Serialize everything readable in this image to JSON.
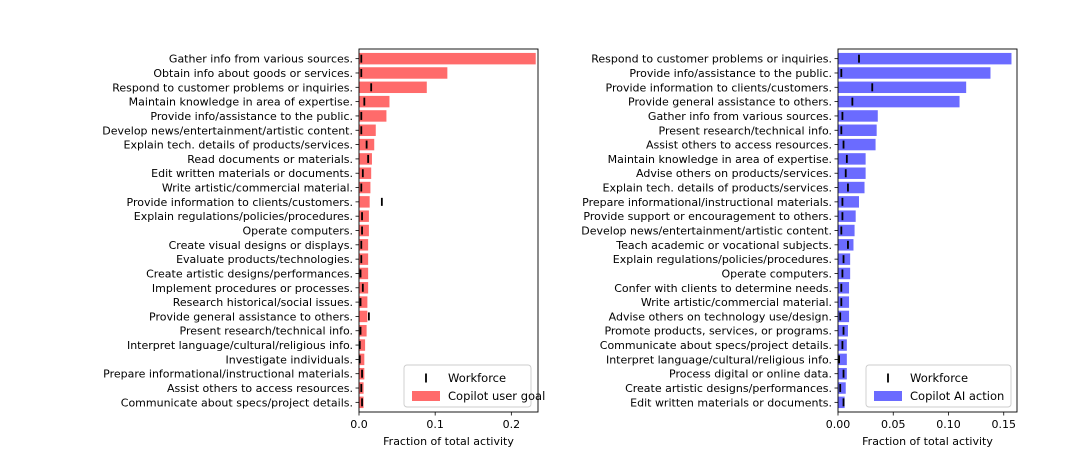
{
  "chart_data": [
    {
      "type": "bar",
      "orientation": "horizontal",
      "xlabel": "Fraction of total activity",
      "xlim": [
        0,
        0.235
      ],
      "xticks": [
        0.0,
        0.1,
        0.2
      ],
      "xtick_labels": [
        "0.0",
        "0.1",
        "0.2"
      ],
      "categories": [
        "Gather info from various sources.",
        "Obtain info about goods or services.",
        "Respond to customer problems or inquiries.",
        "Maintain knowledge in area of expertise.",
        "Provide info/assistance to the public.",
        "Develop news/entertainment/artistic content.",
        "Explain tech. details of products/services.",
        "Read documents or materials.",
        "Edit written materials or documents.",
        "Write artistic/commercial material.",
        "Provide information to clients/customers.",
        "Explain regulations/policies/procedures.",
        "Operate computers.",
        "Create visual designs or displays.",
        "Evaluate products/technologies.",
        "Create artistic designs/performances.",
        "Implement procedures or processes.",
        "Research historical/social issues.",
        "Provide general assistance to others.",
        "Present research/technical info.",
        "Interpret language/cultural/religious info.",
        "Investigate individuals.",
        "Prepare informational/instructional materials.",
        "Assist others to access resources.",
        "Communicate about specs/project details."
      ],
      "series": [
        {
          "name": "Copilot user goal",
          "color": "#ff6b6b",
          "values": [
            0.232,
            0.116,
            0.089,
            0.04,
            0.036,
            0.022,
            0.02,
            0.017,
            0.016,
            0.015,
            0.014,
            0.013,
            0.013,
            0.012,
            0.012,
            0.012,
            0.012,
            0.011,
            0.011,
            0.01,
            0.008,
            0.007,
            0.007,
            0.006,
            0.006
          ]
        },
        {
          "name": "Workforce",
          "marker": "|",
          "color": "#000000",
          "values": [
            0.003,
            0.003,
            0.016,
            0.007,
            0.003,
            0.003,
            0.01,
            0.012,
            0.005,
            0.003,
            0.03,
            0.004,
            0.004,
            0.003,
            0.003,
            0.002,
            0.005,
            0.002,
            0.013,
            0.002,
            0.001,
            0.001,
            0.004,
            0.003,
            0.004
          ]
        }
      ],
      "legend": {
        "position": "bottom-right",
        "entries": [
          "Workforce",
          "Copilot user goal"
        ]
      }
    },
    {
      "type": "bar",
      "orientation": "horizontal",
      "xlabel": "Fraction of total activity",
      "xlim": [
        0,
        0.162
      ],
      "xticks": [
        0.0,
        0.05,
        0.1,
        0.15
      ],
      "xtick_labels": [
        "0.00",
        "0.05",
        "0.10",
        "0.15"
      ],
      "categories": [
        "Respond to customer problems or inquiries.",
        "Provide info/assistance to the public.",
        "Provide information to clients/customers.",
        "Provide general assistance to others.",
        "Gather info from various sources.",
        "Present research/technical info.",
        "Assist others to access resources.",
        "Maintain knowledge in area of expertise.",
        "Advise others on products/services.",
        "Explain tech. details of products/services.",
        "Prepare informational/instructional materials.",
        "Provide support or encouragement to others.",
        "Develop news/entertainment/artistic content.",
        "Teach academic or vocational subjects.",
        "Explain regulations/policies/procedures.",
        "Operate computers.",
        "Confer with clients to determine needs.",
        "Write artistic/commercial material.",
        "Advise others on technology use/design.",
        "Promote products, services, or programs.",
        "Communicate about specs/project details.",
        "Interpret language/cultural/religious info.",
        "Process digital or online data.",
        "Create artistic designs/performances.",
        "Edit written materials or documents."
      ],
      "series": [
        {
          "name": "Copilot AI action",
          "color": "#6b6bff",
          "values": [
            0.157,
            0.138,
            0.116,
            0.11,
            0.036,
            0.035,
            0.034,
            0.025,
            0.025,
            0.024,
            0.019,
            0.016,
            0.015,
            0.014,
            0.011,
            0.011,
            0.01,
            0.01,
            0.01,
            0.009,
            0.008,
            0.008,
            0.008,
            0.007,
            0.006
          ]
        },
        {
          "name": "Workforce",
          "marker": "|",
          "color": "#000000",
          "values": [
            0.019,
            0.003,
            0.031,
            0.013,
            0.004,
            0.003,
            0.005,
            0.008,
            0.007,
            0.009,
            0.004,
            0.004,
            0.003,
            0.009,
            0.005,
            0.004,
            0.003,
            0.003,
            0.002,
            0.005,
            0.004,
            0.001,
            0.005,
            0.002,
            0.005
          ]
        }
      ],
      "legend": {
        "position": "bottom-right",
        "entries": [
          "Workforce",
          "Copilot AI action"
        ]
      }
    }
  ]
}
